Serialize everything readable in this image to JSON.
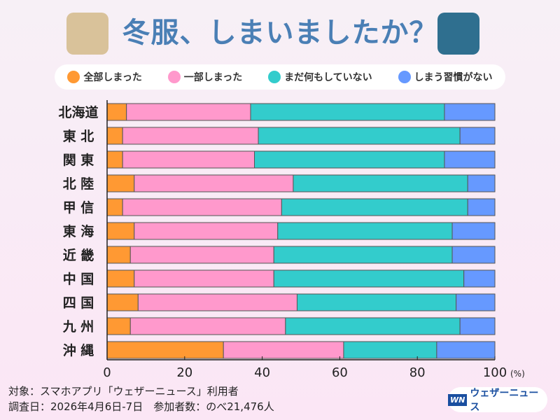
{
  "title": "冬服、しまいましたか？",
  "colors": {
    "all": "#ff9933",
    "partial": "#ff99cc",
    "none": "#33cccc",
    "nohabit": "#6699ff"
  },
  "footer": {
    "line1": "対象：スマホアプリ「ウェザーニュース」利用者",
    "line2": "調査日：2026年4月6日-7日　参加者数：のべ21,476人"
  },
  "logo": {
    "text": "ウェザーニュース",
    "mark": "WN"
  },
  "icons": [
    "coat-icon",
    "down-jacket-icon"
  ],
  "chart_data": {
    "type": "bar",
    "orientation": "horizontal",
    "stacked": true,
    "categories": [
      "北海道",
      "東 北",
      "関 東",
      "北 陸",
      "甲 信",
      "東 海",
      "近 畿",
      "中 国",
      "四 国",
      "九 州",
      "沖 縄"
    ],
    "series": [
      {
        "name": "全部しまった",
        "color": "#ff9933",
        "values": [
          5,
          4,
          4,
          7,
          4,
          7,
          6,
          7,
          8,
          6,
          30
        ]
      },
      {
        "name": "一部しまった",
        "color": "#ff99cc",
        "values": [
          32,
          35,
          34,
          41,
          41,
          37,
          37,
          36,
          41,
          40,
          31
        ]
      },
      {
        "name": "まだ何もしていない",
        "color": "#33cccc",
        "values": [
          50,
          52,
          49,
          45,
          48,
          45,
          46,
          49,
          41,
          45,
          24
        ]
      },
      {
        "name": "しまう習慣がない",
        "color": "#6699ff",
        "values": [
          13,
          9,
          13,
          7,
          7,
          11,
          11,
          8,
          10,
          9,
          15
        ]
      }
    ],
    "xlim": [
      0,
      100
    ],
    "xticks": [
      "0",
      "20",
      "40",
      "60",
      "80",
      "100"
    ],
    "xunit": "(%)",
    "legend_placement": "top",
    "grid": false
  }
}
